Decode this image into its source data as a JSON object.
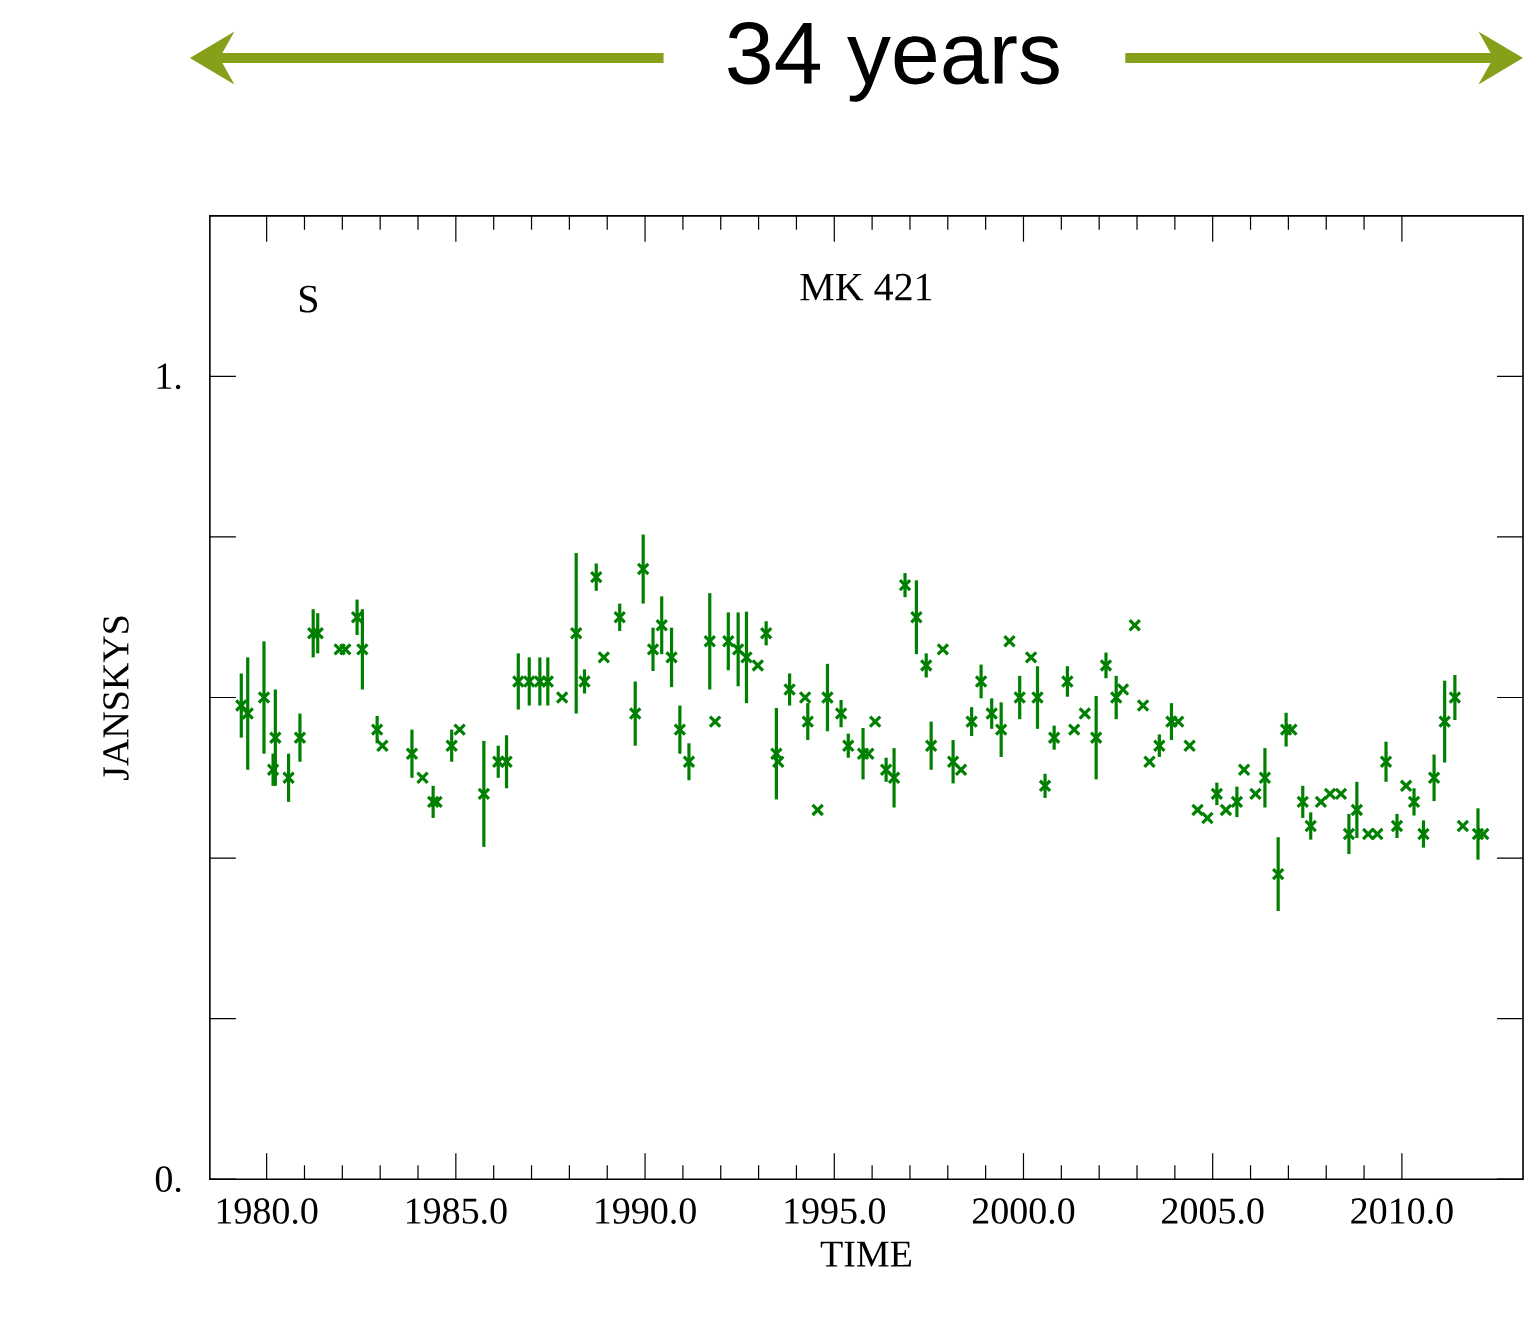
{
  "chart_data": {
    "type": "scatter",
    "title": "MK 421",
    "xlabel": "TIME",
    "ylabel": "JANSKYS",
    "annotations": [
      "S",
      "34 years"
    ],
    "xlim": [
      1978.5,
      2013.2
    ],
    "ylim": [
      0,
      1.2
    ],
    "xticks": [
      {
        "value": 1980,
        "label": "1980.0"
      },
      {
        "value": 1985,
        "label": "1985.0"
      },
      {
        "value": 1990,
        "label": "1990.0"
      },
      {
        "value": 1995,
        "label": "1995.0"
      },
      {
        "value": 2000,
        "label": "2000.0"
      },
      {
        "value": 2005,
        "label": "2005.0"
      },
      {
        "value": 2010,
        "label": "2010.0"
      }
    ],
    "yticks": [
      {
        "value": 0,
        "label": "0."
      },
      {
        "value": 0.2,
        "label": null
      },
      {
        "value": 0.4,
        "label": null
      },
      {
        "value": 0.6,
        "label": null
      },
      {
        "value": 0.8,
        "label": null
      },
      {
        "value": 1,
        "label": "1."
      }
    ],
    "marker": "cross",
    "color": "#008000",
    "x": [
      1979.33,
      1979.5,
      1979.93,
      1980.17,
      1980.23,
      1980.58,
      1980.88,
      1981.23,
      1981.35,
      1981.93,
      1982.08,
      1982.39,
      1982.53,
      1982.92,
      1983.06,
      1983.84,
      1984.12,
      1984.4,
      1984.49,
      1984.89,
      1985.1,
      1985.74,
      1986.12,
      1986.34,
      1986.65,
      1986.94,
      1987.22,
      1987.43,
      1987.81,
      1988.18,
      1988.4,
      1988.71,
      1988.91,
      1989.33,
      1989.74,
      1989.95,
      1990.21,
      1990.44,
      1990.7,
      1990.92,
      1991.16,
      1991.71,
      1991.85,
      1992.2,
      1992.46,
      1992.68,
      1992.98,
      1993.2,
      1993.47,
      1993.52,
      1993.82,
      1994.23,
      1994.3,
      1994.56,
      1994.82,
      1995.18,
      1995.37,
      1995.76,
      1995.9,
      1996.08,
      1996.37,
      1996.58,
      1996.87,
      1997.17,
      1997.43,
      1997.56,
      1997.87,
      1998.14,
      1998.35,
      1998.63,
      1998.88,
      1999.16,
      1999.41,
      1999.63,
      1999.9,
      2000.2,
      2000.37,
      2000.57,
      2000.81,
      2001.16,
      2001.34,
      2001.62,
      2001.92,
      2002.18,
      2002.45,
      2002.63,
      2002.94,
      2003.16,
      2003.33,
      2003.59,
      2003.91,
      2004.09,
      2004.39,
      2004.6,
      2004.86,
      2005.11,
      2005.35,
      2005.64,
      2005.83,
      2006.13,
      2006.38,
      2006.73,
      2006.94,
      2007.08,
      2007.38,
      2007.59,
      2007.86,
      2008.1,
      2008.39,
      2008.6,
      2008.81,
      2009.11,
      2009.35,
      2009.58,
      2009.87,
      2010.11,
      2010.32,
      2010.57,
      2010.85,
      2011.13,
      2011.4,
      2011.61,
      2012.01,
      2012.15
    ],
    "values": [
      0.59,
      0.58,
      0.6,
      0.51,
      0.55,
      0.5,
      0.55,
      0.68,
      0.68,
      0.66,
      0.66,
      0.7,
      0.66,
      0.56,
      0.54,
      0.53,
      0.5,
      0.47,
      0.47,
      0.54,
      0.56,
      0.48,
      0.52,
      0.52,
      0.62,
      0.62,
      0.62,
      0.62,
      0.6,
      0.68,
      0.62,
      0.75,
      0.65,
      0.7,
      0.58,
      0.76,
      0.66,
      0.69,
      0.65,
      0.56,
      0.52,
      0.67,
      0.57,
      0.67,
      0.66,
      0.65,
      0.64,
      0.68,
      0.53,
      0.52,
      0.61,
      0.6,
      0.57,
      0.46,
      0.6,
      0.58,
      0.54,
      0.53,
      0.53,
      0.57,
      0.51,
      0.5,
      0.74,
      0.7,
      0.64,
      0.54,
      0.66,
      0.52,
      0.51,
      0.57,
      0.62,
      0.58,
      0.56,
      0.67,
      0.6,
      0.65,
      0.6,
      0.49,
      0.55,
      0.62,
      0.56,
      0.58,
      0.55,
      0.64,
      0.6,
      0.61,
      0.69,
      0.59,
      0.52,
      0.54,
      0.57,
      0.57,
      0.54,
      0.46,
      0.45,
      0.48,
      0.46,
      0.47,
      0.51,
      0.48,
      0.5,
      0.38,
      0.56,
      0.56,
      0.47,
      0.44,
      0.47,
      0.48,
      0.48,
      0.43,
      0.46,
      0.43,
      0.43,
      0.52,
      0.44,
      0.49,
      0.47,
      0.43,
      0.5,
      0.57,
      0.6,
      0.44,
      0.43,
      0.43
    ],
    "errors": [
      0.04,
      0.07,
      0.07,
      0.02,
      0.06,
      0.03,
      0.03,
      0.03,
      0.025,
      null,
      null,
      0.022,
      0.05,
      0.017,
      null,
      0.03,
      null,
      0.02,
      null,
      0.02,
      null,
      0.066,
      0.02,
      0.033,
      0.035,
      0.03,
      0.03,
      0.03,
      null,
      0.1,
      0.015,
      0.017,
      null,
      0.017,
      0.04,
      0.043,
      0.027,
      0.036,
      0.037,
      0.03,
      0.023,
      0.06,
      null,
      0.036,
      0.046,
      0.057,
      null,
      0.015,
      0.057,
      null,
      0.02,
      null,
      0.023,
      null,
      0.042,
      0.017,
      0.015,
      0.032,
      null,
      null,
      0.015,
      0.037,
      0.015,
      0.046,
      0.015,
      0.03,
      null,
      0.027,
      null,
      0.018,
      0.021,
      0.019,
      0.034,
      null,
      0.027,
      null,
      0.039,
      0.015,
      0.015,
      0.019,
      null,
      null,
      0.052,
      0.016,
      0.027,
      null,
      null,
      null,
      null,
      0.014,
      0.023,
      null,
      null,
      null,
      null,
      0.014,
      null,
      0.019,
      null,
      null,
      0.037,
      0.046,
      0.021,
      null,
      0.02,
      0.017,
      null,
      null,
      null,
      0.025,
      0.035,
      null,
      null,
      0.025,
      0.015,
      null,
      0.017,
      0.017,
      0.029,
      0.051,
      0.028,
      null,
      0.032,
      null
    ]
  }
}
